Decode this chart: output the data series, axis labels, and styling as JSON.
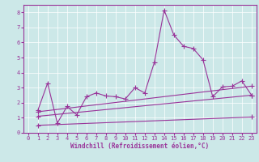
{
  "xlabel": "Windchill (Refroidissement éolien,°C)",
  "bg_color": "#cce8e8",
  "line_color": "#993399",
  "xlim": [
    -0.5,
    23.5
  ],
  "ylim": [
    0,
    8.5
  ],
  "xticks": [
    0,
    1,
    2,
    3,
    4,
    5,
    6,
    7,
    8,
    9,
    10,
    11,
    12,
    13,
    14,
    15,
    16,
    17,
    18,
    19,
    20,
    21,
    22,
    23
  ],
  "yticks": [
    0,
    1,
    2,
    3,
    4,
    5,
    6,
    7,
    8
  ],
  "series": [
    {
      "x": [
        1,
        2,
        3,
        4,
        5,
        6,
        7,
        8,
        9,
        10,
        11,
        12,
        13,
        14,
        15,
        16,
        17,
        18,
        19,
        20,
        21,
        22,
        23
      ],
      "y": [
        1.5,
        3.3,
        0.65,
        1.75,
        1.2,
        2.4,
        2.65,
        2.45,
        2.4,
        2.25,
        3.0,
        2.65,
        4.7,
        8.15,
        6.5,
        5.75,
        5.6,
        4.85,
        2.4,
        3.05,
        3.1,
        3.45,
        2.5
      ],
      "marker": true
    },
    {
      "x": [
        1,
        23
      ],
      "y": [
        1.4,
        3.1
      ],
      "marker": true
    },
    {
      "x": [
        1,
        23
      ],
      "y": [
        1.1,
        2.5
      ],
      "marker": true
    },
    {
      "x": [
        1,
        23
      ],
      "y": [
        0.5,
        1.05
      ],
      "marker": true
    }
  ]
}
